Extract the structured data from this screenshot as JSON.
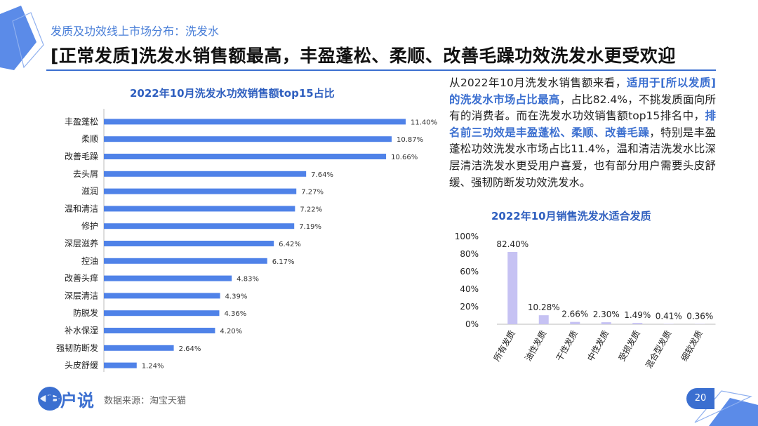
{
  "header": {
    "subtitle": "发质及功效线上市场分布：洗发水",
    "headline": "[正常发质]洗发水销售额最高，丰盈蓬松、柔顺、改善毛躁功效洗发水更受欢迎"
  },
  "description": {
    "p1": "从2022年10月洗发水销售额来看，",
    "hl1": "适用于[所以发质]的洗发水市场占比最高",
    "p2": "，占比82.4%，不挑发质面向所有的消费者。而在洗发水功效销售额top15排名中，",
    "hl2": "排名前三功效是丰盈蓬松、柔顺、改善毛躁",
    "p3": "，特别是丰盈蓬松功效洗发水市场占比11.4%，温和清洁洗发水比深层清洁洗发水更受用户喜爱，也有部分用户需要头皮舒缓、强韧防断发功效洗发水。"
  },
  "footer": {
    "logo_text": "用户说",
    "source": "数据来源：淘宝天猫",
    "page_number": "20"
  },
  "colors": {
    "accent": "#3b6fd0",
    "bar_blue": "#4f82e8",
    "bar_lavender": "#c6c2f3"
  },
  "chart_data": [
    {
      "type": "bar",
      "orientation": "horizontal",
      "title": "2022年10月洗发水功效销售额top15占比",
      "categories": [
        "丰盈蓬松",
        "柔顺",
        "改善毛躁",
        "去头屑",
        "滋润",
        "温和清洁",
        "修护",
        "深层滋养",
        "控油",
        "改善头痒",
        "深层清洁",
        "防脱发",
        "补水保湿",
        "强韧防断发",
        "头皮舒缓"
      ],
      "values": [
        11.4,
        10.87,
        10.66,
        7.64,
        7.27,
        7.22,
        7.19,
        6.42,
        6.17,
        4.83,
        4.39,
        4.36,
        4.2,
        2.64,
        1.24
      ],
      "value_labels": [
        "11.40%",
        "10.87%",
        "10.66%",
        "7.64%",
        "7.27%",
        "7.22%",
        "7.19%",
        "6.42%",
        "6.17%",
        "4.83%",
        "4.39%",
        "4.36%",
        "4.20%",
        "2.64%",
        "1.24%"
      ],
      "xlim": [
        0,
        11.4
      ],
      "grid": false
    },
    {
      "type": "bar",
      "orientation": "vertical",
      "title": "2022年10月销售洗发水适合发质",
      "categories": [
        "所有发质",
        "油性发质",
        "干性发质",
        "中性发质",
        "受损发质",
        "混合型发质",
        "细软发质"
      ],
      "values": [
        82.4,
        10.28,
        2.66,
        2.3,
        1.49,
        0.41,
        0.36
      ],
      "value_labels": [
        "82.40%",
        "10.28%",
        "2.66%",
        "2.30%",
        "1.49%",
        "0.41%",
        "0.36%"
      ],
      "ylim": [
        0,
        100
      ],
      "yticks": [
        "0%",
        "20%",
        "40%",
        "60%",
        "80%",
        "100%"
      ],
      "grid": false
    }
  ]
}
